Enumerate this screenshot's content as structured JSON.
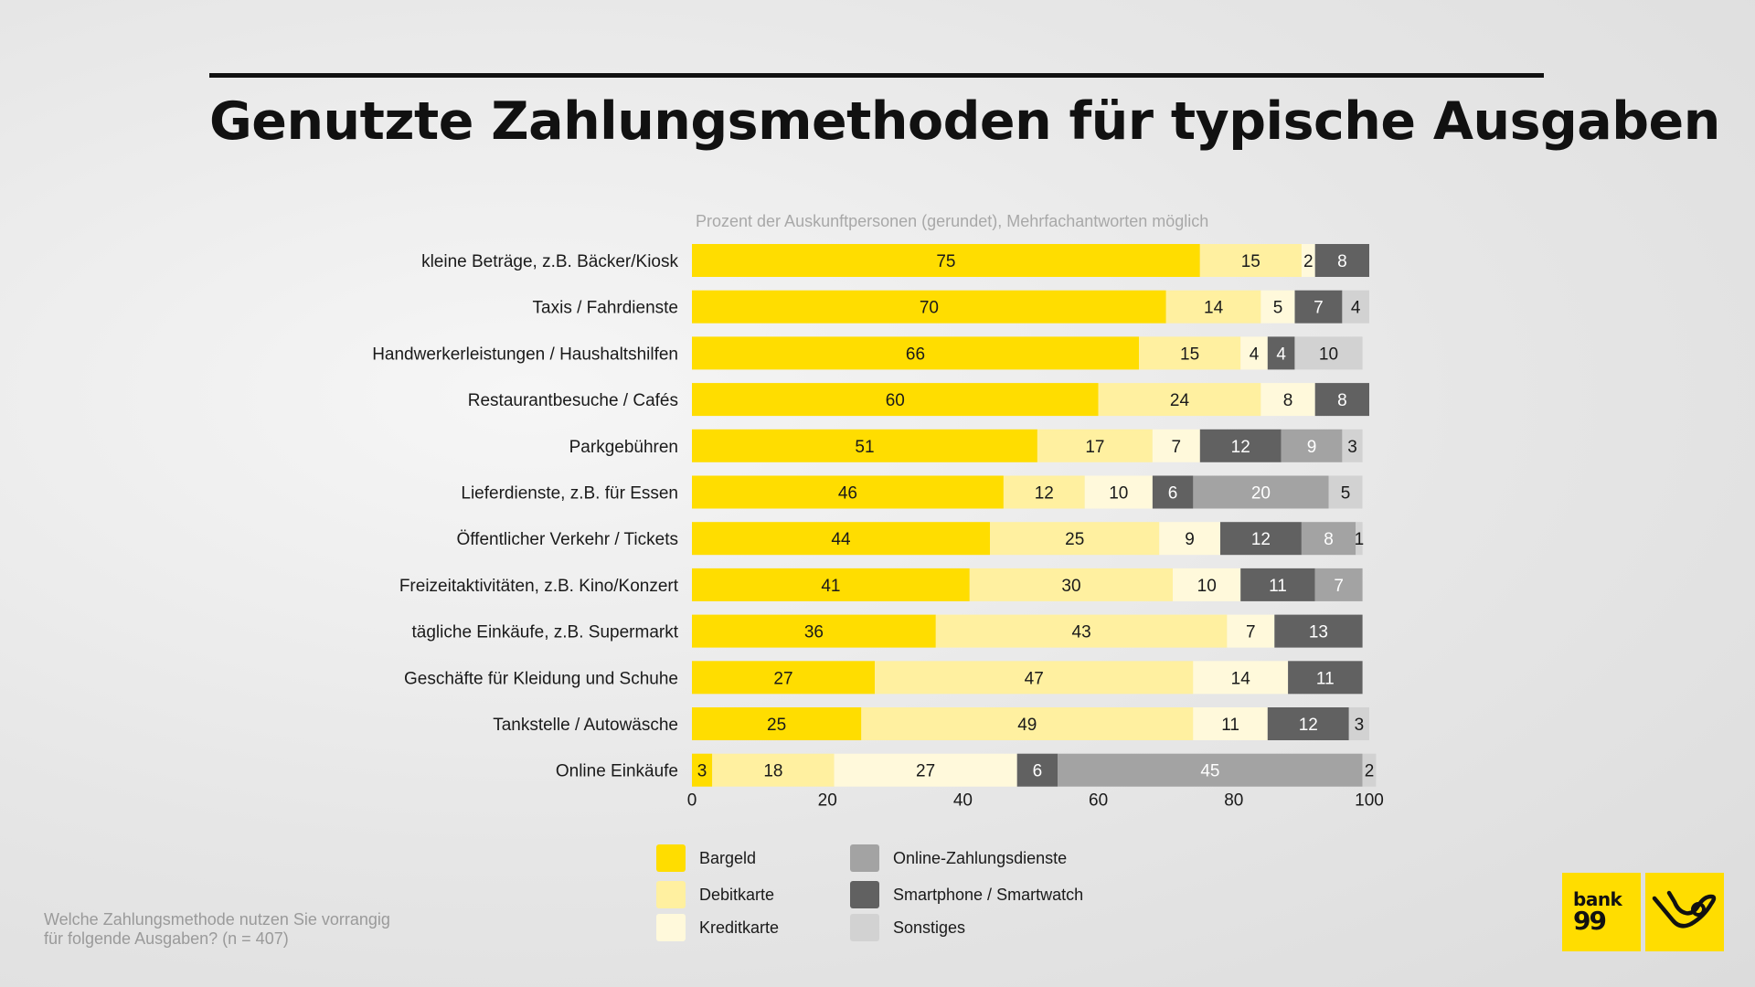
{
  "title": "Genutzte Zahlungsmethoden für typische Ausgaben",
  "subtitle": "Prozent der Auskunftpersonen (gerundet), Mehrfachantworten möglich",
  "footnote": {
    "line1": "Welche Zahlungsmethode nutzen Sie vorrangig",
    "line2": "für folgende Ausgaben? (n = 407)"
  },
  "logos": {
    "bank_line1": "bank",
    "bank_line2": "99"
  },
  "chart_data": {
    "type": "bar",
    "orientation": "horizontal",
    "stacked": true,
    "categories": [
      "kleine Beträge, z.B. Bäcker/Kiosk",
      "Taxis / Fahrdienste",
      "Handwerkerleistungen / Haushaltshilfen",
      "Restaurantbesuche / Cafés",
      "Parkgebühren",
      "Lieferdienste, z.B. für Essen",
      "Öffentlicher Verkehr / Tickets",
      "Freizeitaktivitäten, z.B. Kino/Konzert",
      "tägliche Einkäufe, z.B. Supermarkt",
      "Geschäfte für Kleidung und Schuhe",
      "Tankstelle / Autowäsche",
      "Online Einkäufe"
    ],
    "series": [
      {
        "name": "Bargeld",
        "color": "#ffdd00",
        "text_color": "#1a1a1a",
        "values": [
          75,
          70,
          66,
          60,
          51,
          46,
          44,
          41,
          36,
          27,
          25,
          3
        ]
      },
      {
        "name": "Debitkarte",
        "color": "#fff0a0",
        "text_color": "#1a1a1a",
        "values": [
          15,
          14,
          15,
          24,
          17,
          12,
          25,
          30,
          43,
          47,
          49,
          18
        ]
      },
      {
        "name": "Kreditkarte",
        "color": "#fff9db",
        "text_color": "#1a1a1a",
        "values": [
          2,
          5,
          4,
          8,
          7,
          10,
          9,
          10,
          7,
          14,
          11,
          27
        ]
      },
      {
        "name": "Smartphone / Smartwatch",
        "color": "#616161",
        "text_color": "#ffffff",
        "values": [
          8,
          7,
          4,
          8,
          12,
          6,
          12,
          11,
          13,
          11,
          12,
          6
        ]
      },
      {
        "name": "Online-Zahlungsdienste",
        "color": "#a3a3a3",
        "text_color": "#ffffff",
        "values": [
          0,
          0,
          0,
          0,
          9,
          20,
          8,
          7,
          0,
          0,
          0,
          45
        ]
      },
      {
        "name": "Sonstiges",
        "color": "#d2d2d2",
        "text_color": "#1a1a1a",
        "values": [
          0,
          4,
          10,
          0,
          3,
          5,
          1,
          0,
          0,
          0,
          3,
          2
        ]
      }
    ],
    "legend_order": [
      "Bargeld",
      "Debitkarte",
      "Kreditkarte",
      "Online-Zahlungsdienste",
      "Smartphone / Smartwatch",
      "Sonstiges"
    ],
    "xlim": [
      0,
      100
    ],
    "xticks": [
      0,
      20,
      40,
      60,
      80,
      100
    ],
    "xlabel": "",
    "ylabel": "",
    "grid": false,
    "legend_position": "bottom"
  }
}
